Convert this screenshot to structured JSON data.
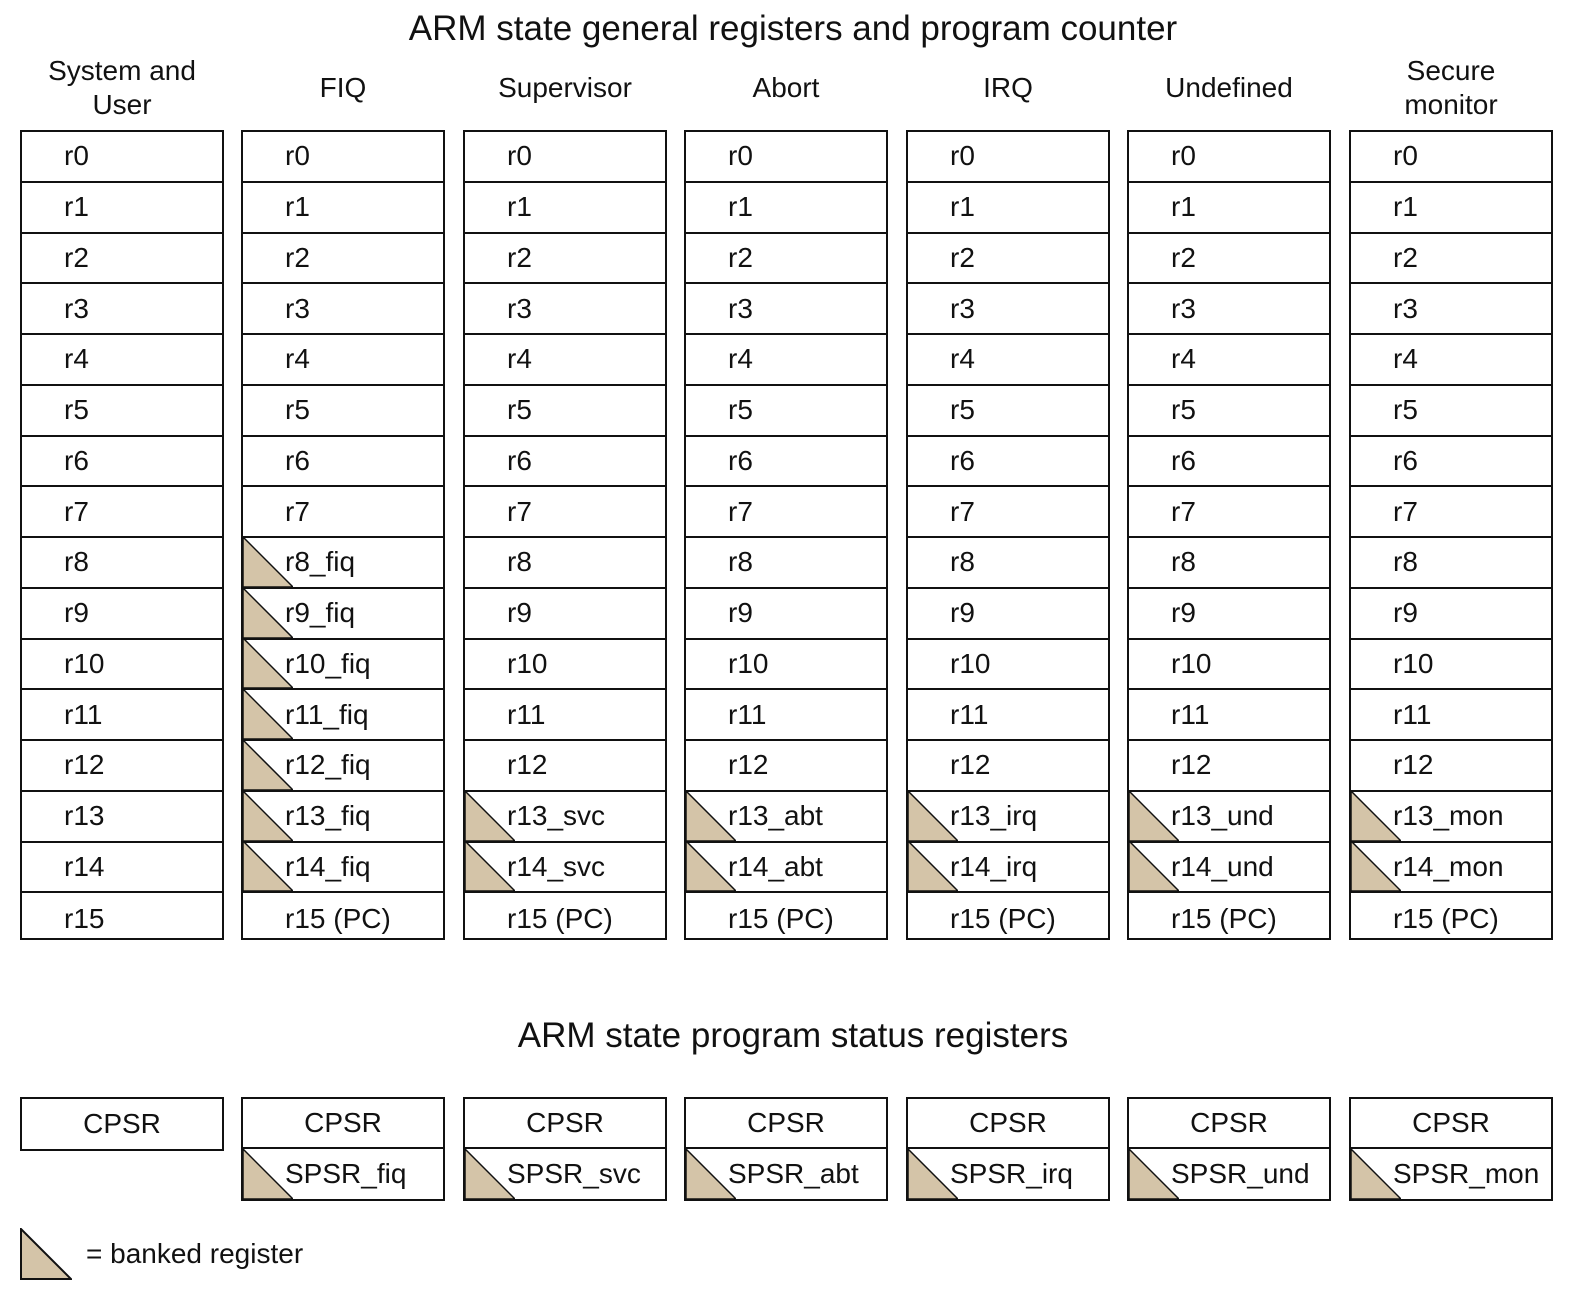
{
  "titles": {
    "general": "ARM state general registers and program counter",
    "psr": "ARM state program status registers"
  },
  "colors": {
    "banked_fill": "#d4c4a8",
    "border": "#111111"
  },
  "legend": {
    "icon": "banked-triangle-icon",
    "text": "= banked register"
  },
  "modes": [
    {
      "name": "System and User",
      "registers": [
        {
          "label": "r0",
          "banked": false
        },
        {
          "label": "r1",
          "banked": false
        },
        {
          "label": "r2",
          "banked": false
        },
        {
          "label": "r3",
          "banked": false
        },
        {
          "label": "r4",
          "banked": false
        },
        {
          "label": "r5",
          "banked": false
        },
        {
          "label": "r6",
          "banked": false
        },
        {
          "label": "r7",
          "banked": false
        },
        {
          "label": "r8",
          "banked": false
        },
        {
          "label": "r9",
          "banked": false
        },
        {
          "label": "r10",
          "banked": false
        },
        {
          "label": "r11",
          "banked": false
        },
        {
          "label": "r12",
          "banked": false
        },
        {
          "label": "r13",
          "banked": false
        },
        {
          "label": "r14",
          "banked": false
        },
        {
          "label": "r15",
          "banked": false
        }
      ],
      "psr": [
        {
          "label": "CPSR",
          "banked": false
        }
      ]
    },
    {
      "name": "FIQ",
      "registers": [
        {
          "label": "r0",
          "banked": false
        },
        {
          "label": "r1",
          "banked": false
        },
        {
          "label": "r2",
          "banked": false
        },
        {
          "label": "r3",
          "banked": false
        },
        {
          "label": "r4",
          "banked": false
        },
        {
          "label": "r5",
          "banked": false
        },
        {
          "label": "r6",
          "banked": false
        },
        {
          "label": "r7",
          "banked": false
        },
        {
          "label": "r8_fiq",
          "banked": true
        },
        {
          "label": "r9_fiq",
          "banked": true
        },
        {
          "label": "r10_fiq",
          "banked": true
        },
        {
          "label": "r11_fiq",
          "banked": true
        },
        {
          "label": "r12_fiq",
          "banked": true
        },
        {
          "label": "r13_fiq",
          "banked": true
        },
        {
          "label": "r14_fiq",
          "banked": true
        },
        {
          "label": "r15 (PC)",
          "banked": false
        }
      ],
      "psr": [
        {
          "label": "CPSR",
          "banked": false
        },
        {
          "label": "SPSR_fiq",
          "banked": true
        }
      ]
    },
    {
      "name": "Supervisor",
      "registers": [
        {
          "label": "r0",
          "banked": false
        },
        {
          "label": "r1",
          "banked": false
        },
        {
          "label": "r2",
          "banked": false
        },
        {
          "label": "r3",
          "banked": false
        },
        {
          "label": "r4",
          "banked": false
        },
        {
          "label": "r5",
          "banked": false
        },
        {
          "label": "r6",
          "banked": false
        },
        {
          "label": "r7",
          "banked": false
        },
        {
          "label": "r8",
          "banked": false
        },
        {
          "label": "r9",
          "banked": false
        },
        {
          "label": "r10",
          "banked": false
        },
        {
          "label": "r11",
          "banked": false
        },
        {
          "label": "r12",
          "banked": false
        },
        {
          "label": "r13_svc",
          "banked": true
        },
        {
          "label": "r14_svc",
          "banked": true
        },
        {
          "label": "r15 (PC)",
          "banked": false
        }
      ],
      "psr": [
        {
          "label": "CPSR",
          "banked": false
        },
        {
          "label": "SPSR_svc",
          "banked": true
        }
      ]
    },
    {
      "name": "Abort",
      "registers": [
        {
          "label": "r0",
          "banked": false
        },
        {
          "label": "r1",
          "banked": false
        },
        {
          "label": "r2",
          "banked": false
        },
        {
          "label": "r3",
          "banked": false
        },
        {
          "label": "r4",
          "banked": false
        },
        {
          "label": "r5",
          "banked": false
        },
        {
          "label": "r6",
          "banked": false
        },
        {
          "label": "r7",
          "banked": false
        },
        {
          "label": "r8",
          "banked": false
        },
        {
          "label": "r9",
          "banked": false
        },
        {
          "label": "r10",
          "banked": false
        },
        {
          "label": "r11",
          "banked": false
        },
        {
          "label": "r12",
          "banked": false
        },
        {
          "label": "r13_abt",
          "banked": true
        },
        {
          "label": "r14_abt",
          "banked": true
        },
        {
          "label": "r15 (PC)",
          "banked": false
        }
      ],
      "psr": [
        {
          "label": "CPSR",
          "banked": false
        },
        {
          "label": "SPSR_abt",
          "banked": true
        }
      ]
    },
    {
      "name": "IRQ",
      "registers": [
        {
          "label": "r0",
          "banked": false
        },
        {
          "label": "r1",
          "banked": false
        },
        {
          "label": "r2",
          "banked": false
        },
        {
          "label": "r3",
          "banked": false
        },
        {
          "label": "r4",
          "banked": false
        },
        {
          "label": "r5",
          "banked": false
        },
        {
          "label": "r6",
          "banked": false
        },
        {
          "label": "r7",
          "banked": false
        },
        {
          "label": "r8",
          "banked": false
        },
        {
          "label": "r9",
          "banked": false
        },
        {
          "label": "r10",
          "banked": false
        },
        {
          "label": "r11",
          "banked": false
        },
        {
          "label": "r12",
          "banked": false
        },
        {
          "label": "r13_irq",
          "banked": true
        },
        {
          "label": "r14_irq",
          "banked": true
        },
        {
          "label": "r15 (PC)",
          "banked": false
        }
      ],
      "psr": [
        {
          "label": "CPSR",
          "banked": false
        },
        {
          "label": "SPSR_irq",
          "banked": true
        }
      ]
    },
    {
      "name": "Undefined",
      "registers": [
        {
          "label": "r0",
          "banked": false
        },
        {
          "label": "r1",
          "banked": false
        },
        {
          "label": "r2",
          "banked": false
        },
        {
          "label": "r3",
          "banked": false
        },
        {
          "label": "r4",
          "banked": false
        },
        {
          "label": "r5",
          "banked": false
        },
        {
          "label": "r6",
          "banked": false
        },
        {
          "label": "r7",
          "banked": false
        },
        {
          "label": "r8",
          "banked": false
        },
        {
          "label": "r9",
          "banked": false
        },
        {
          "label": "r10",
          "banked": false
        },
        {
          "label": "r11",
          "banked": false
        },
        {
          "label": "r12",
          "banked": false
        },
        {
          "label": "r13_und",
          "banked": true
        },
        {
          "label": "r14_und",
          "banked": true
        },
        {
          "label": "r15 (PC)",
          "banked": false
        }
      ],
      "psr": [
        {
          "label": "CPSR",
          "banked": false
        },
        {
          "label": "SPSR_und",
          "banked": true
        }
      ]
    },
    {
      "name": "Secure monitor",
      "registers": [
        {
          "label": "r0",
          "banked": false
        },
        {
          "label": "r1",
          "banked": false
        },
        {
          "label": "r2",
          "banked": false
        },
        {
          "label": "r3",
          "banked": false
        },
        {
          "label": "r4",
          "banked": false
        },
        {
          "label": "r5",
          "banked": false
        },
        {
          "label": "r6",
          "banked": false
        },
        {
          "label": "r7",
          "banked": false
        },
        {
          "label": "r8",
          "banked": false
        },
        {
          "label": "r9",
          "banked": false
        },
        {
          "label": "r10",
          "banked": false
        },
        {
          "label": "r11",
          "banked": false
        },
        {
          "label": "r12",
          "banked": false
        },
        {
          "label": "r13_mon",
          "banked": true
        },
        {
          "label": "r14_mon",
          "banked": true
        },
        {
          "label": "r15 (PC)",
          "banked": false
        }
      ],
      "psr": [
        {
          "label": "CPSR",
          "banked": false
        },
        {
          "label": "SPSR_mon",
          "banked": true
        }
      ]
    }
  ]
}
